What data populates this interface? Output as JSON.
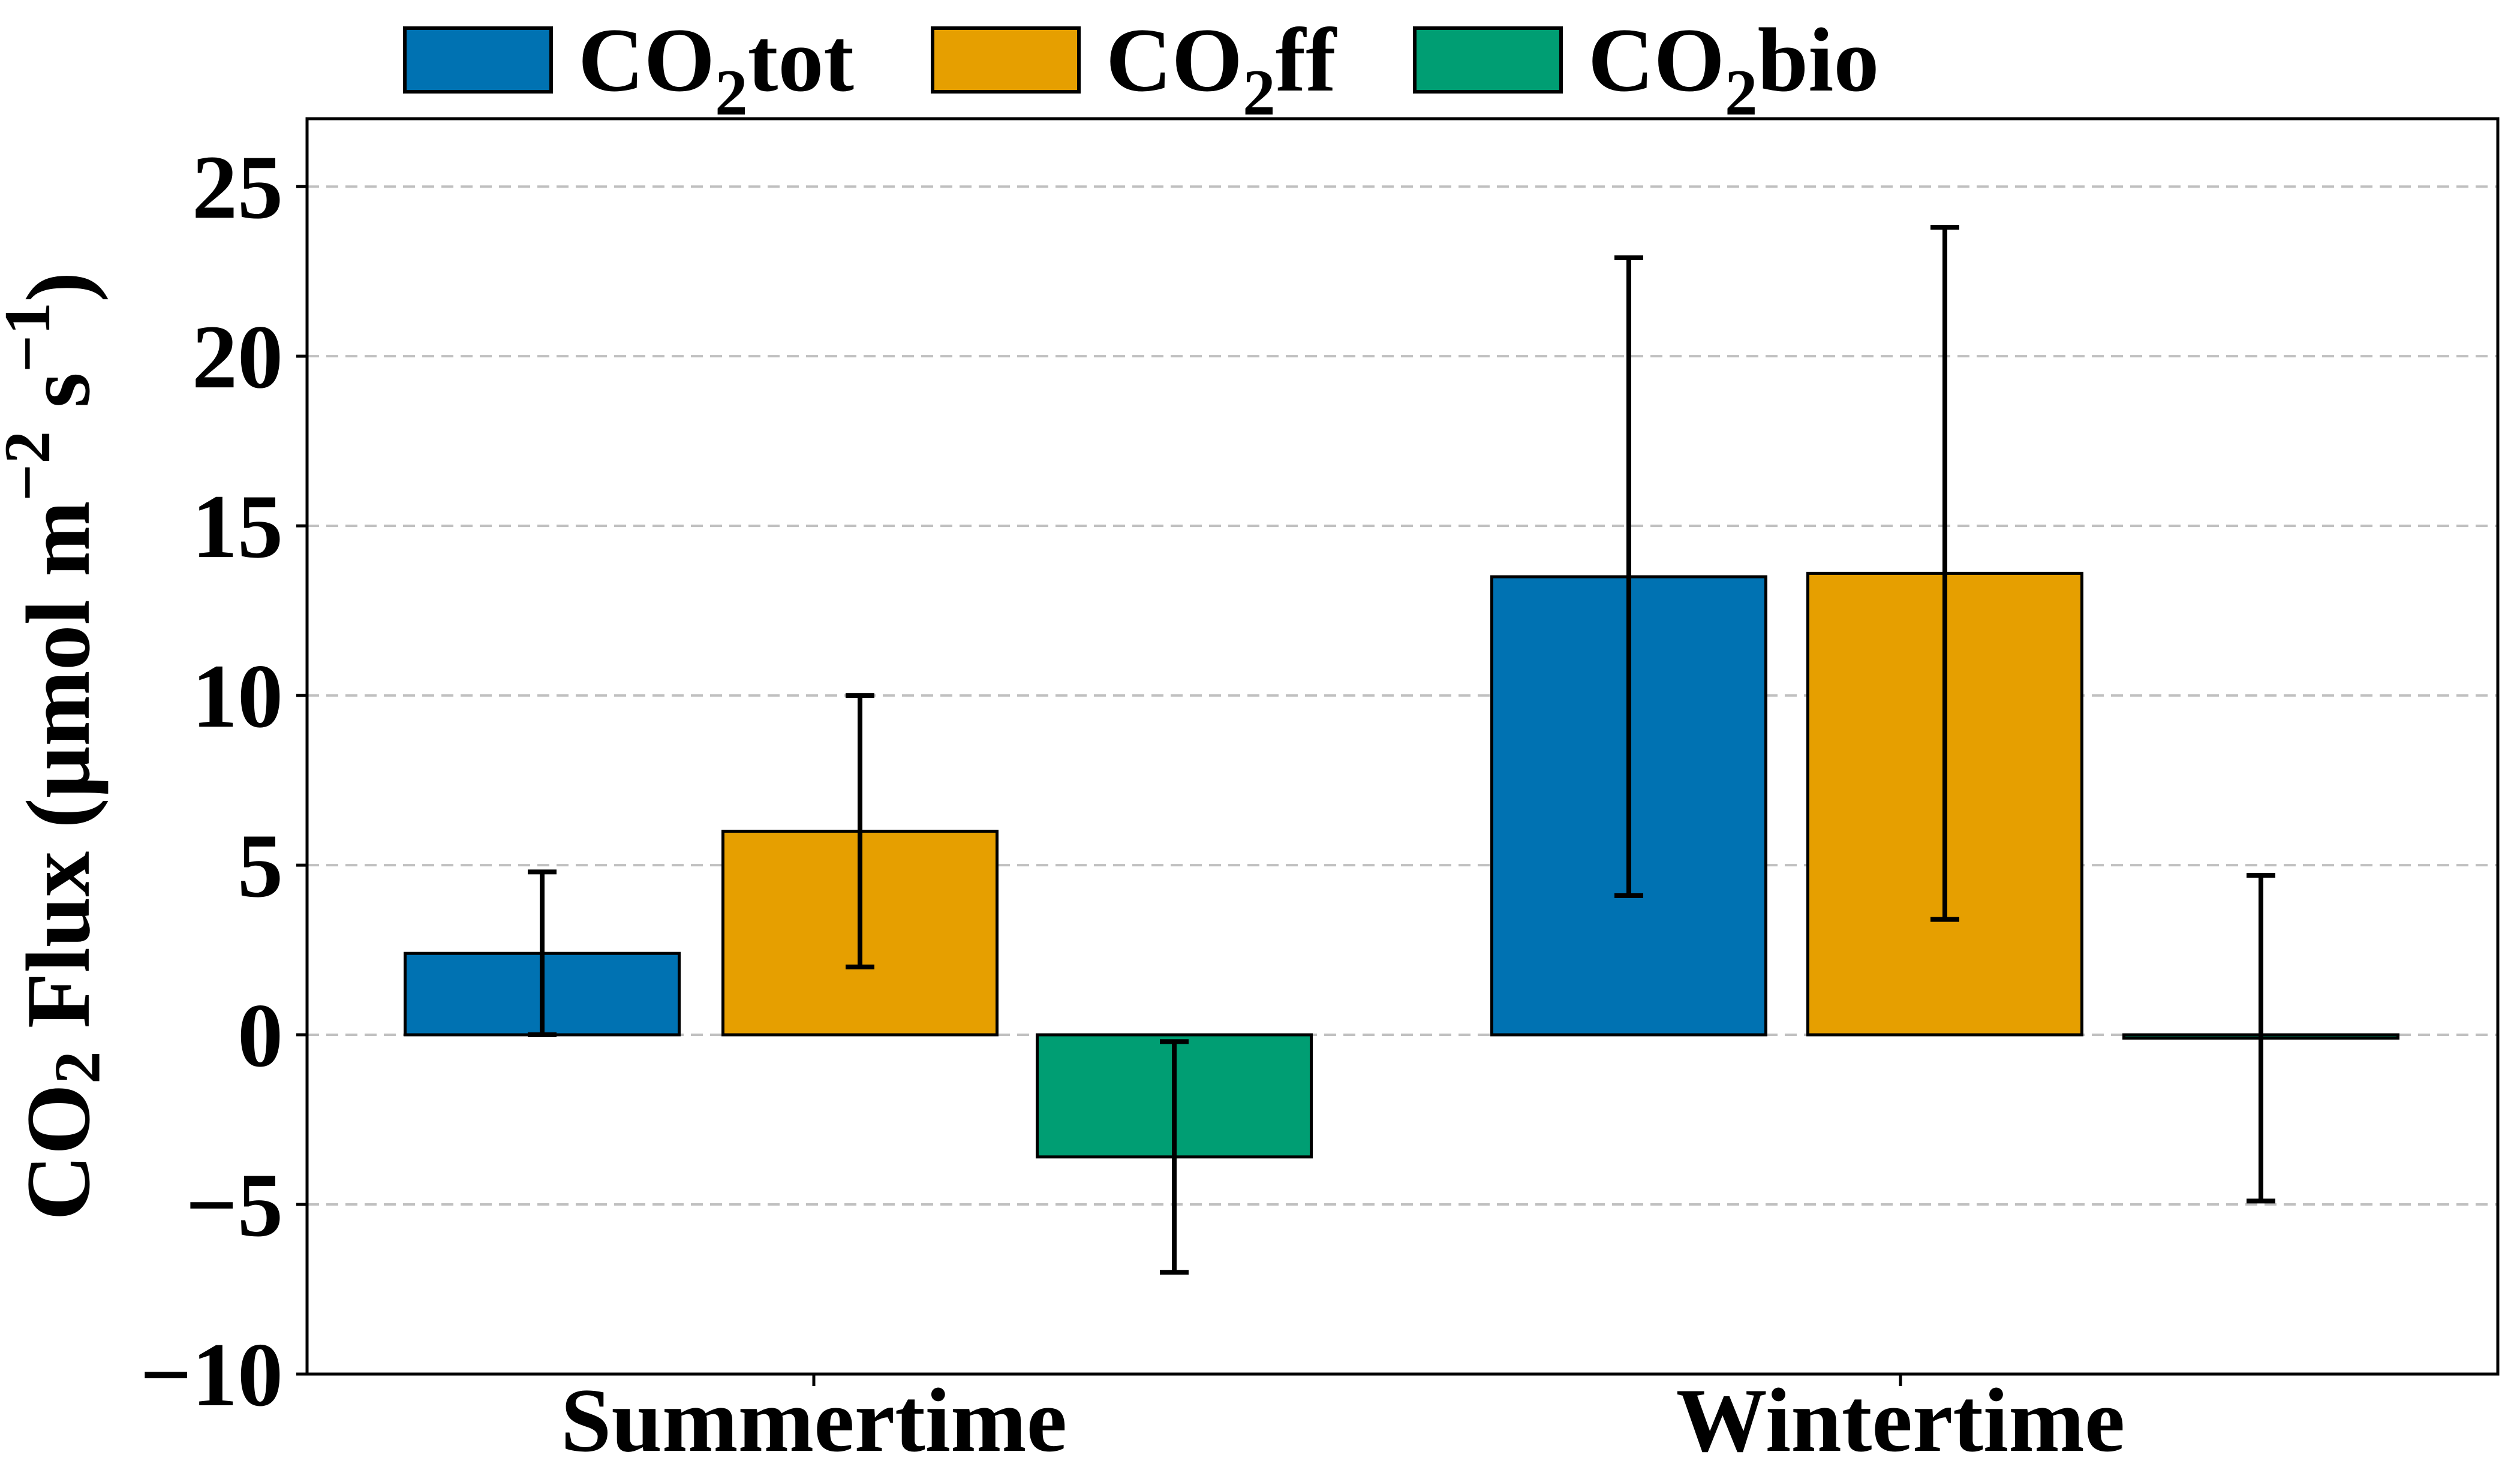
{
  "figure": {
    "background": "#ffffff",
    "text_color": "#000000"
  },
  "chart_data": {
    "type": "bar",
    "title": "",
    "categories": [
      "Summertime",
      "Wintertime"
    ],
    "series": [
      {
        "name": "CO2tot",
        "label_pre": "CO",
        "label_sub": "2",
        "label_post": "tot",
        "color": "#0072B2",
        "values": [
          2.4,
          13.5
        ],
        "errors": [
          2.4,
          9.4
        ]
      },
      {
        "name": "CO2ff",
        "label_pre": "CO",
        "label_sub": "2",
        "label_post": "ff",
        "color": "#E69F00",
        "values": [
          6.0,
          13.6
        ],
        "errors": [
          4.0,
          10.2
        ]
      },
      {
        "name": "CO2bio",
        "label_pre": "CO",
        "label_sub": "2",
        "label_post": "bio",
        "color": "#009E73",
        "values": [
          -3.6,
          -0.1
        ],
        "errors": [
          3.4,
          4.8
        ]
      }
    ],
    "xlabel": "",
    "ylabel": "CO₂ Flux (μmol m⁻² s⁻¹)",
    "ylabel_parts": {
      "p0": "CO",
      "sub": "2",
      "p1": " Flux (μmol m",
      "sup1": "−2",
      "p2": " s",
      "sup2": "−1",
      "p3": ")"
    },
    "yticks": [
      25,
      20,
      15,
      10,
      5,
      0,
      -5,
      -10
    ],
    "ytick_labels": [
      "25",
      "20",
      "15",
      "10",
      "5",
      "0",
      "−5",
      "−10"
    ],
    "ylim": [
      -10,
      27
    ],
    "grid": {
      "axis": "y",
      "style": "dashed",
      "color": "#c0c0c0"
    },
    "legend": {
      "position": "top",
      "labels": [
        "CO₂tot",
        "CO₂ff",
        "CO₂bio"
      ]
    },
    "error_bars": true,
    "bar_edge_color": "#000000",
    "error_bar_color": "#000000"
  }
}
